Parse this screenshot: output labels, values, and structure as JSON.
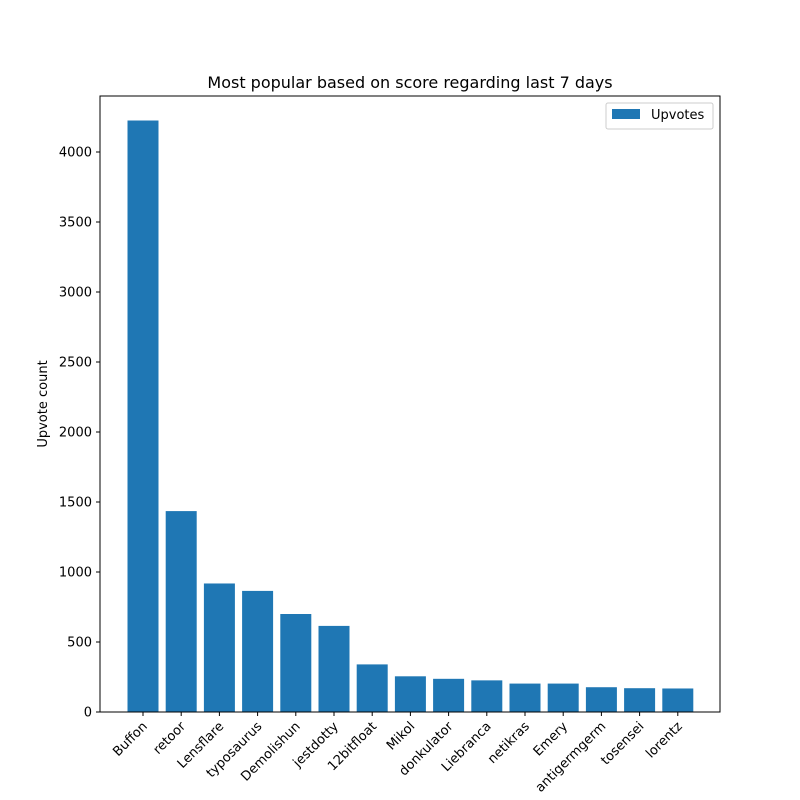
{
  "chart_data": {
    "type": "bar",
    "title": "Most popular based on score regarding last 7 days",
    "xlabel": "",
    "ylabel": "Upvote count",
    "ylim": [
      0,
      4400
    ],
    "yticks": [
      0,
      500,
      1000,
      1500,
      2000,
      2500,
      3000,
      3500,
      4000
    ],
    "legend_position": "top-right",
    "grid": false,
    "categories": [
      "Buffon",
      "retoor",
      "Lensflare",
      "typosaurus",
      "Demolishun",
      "jestdotty",
      "12bitfloat",
      "Mikol",
      "donkulator",
      "Liebranca",
      "netikras",
      "Emery",
      "antigermgerm",
      "tosensei",
      "lorentz"
    ],
    "series": [
      {
        "name": "Upvotes",
        "color": "#1f77b4",
        "values": [
          4225,
          1435,
          918,
          865,
          700,
          615,
          340,
          255,
          237,
          226,
          203,
          203,
          177,
          170,
          168
        ]
      }
    ]
  }
}
